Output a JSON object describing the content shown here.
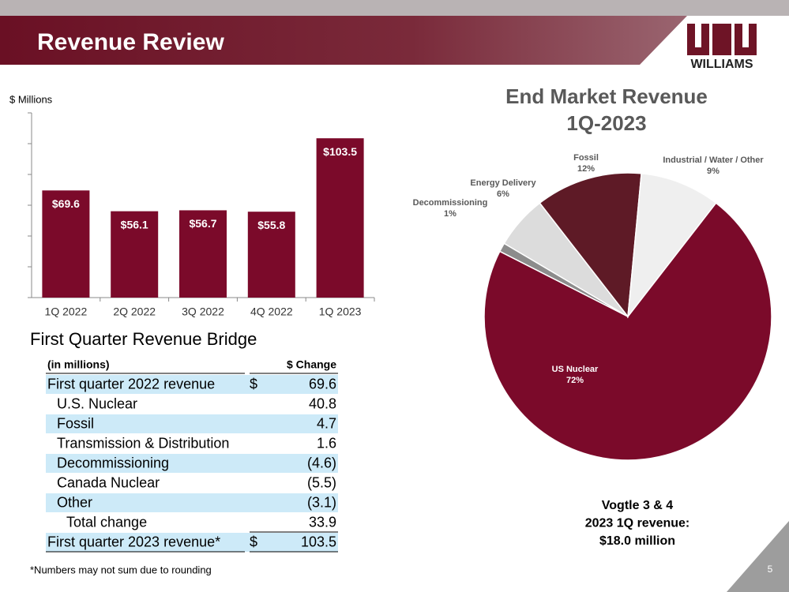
{
  "header": {
    "title": "Revenue Review",
    "logo": "WILLIAMS"
  },
  "chart_data": [
    {
      "type": "bar",
      "y_label": "$ Millions",
      "categories": [
        "1Q 2022",
        "2Q 2022",
        "3Q 2022",
        "4Q 2022",
        "1Q 2023"
      ],
      "values": [
        69.6,
        56.1,
        56.7,
        55.8,
        103.5
      ],
      "value_labels": [
        "$69.6",
        "$56.1",
        "$56.7",
        "$55.8",
        "$103.5"
      ],
      "color": "#7b0a2a",
      "ylim": [
        0,
        120
      ],
      "yticks": [
        0,
        20,
        40,
        60,
        80,
        100,
        120
      ],
      "grid": false
    },
    {
      "type": "pie",
      "title": "End Market Revenue",
      "subtitle": "1Q-2023",
      "categories": [
        "US Nuclear",
        "Decommissioning",
        "Energy Delivery",
        "Fossil",
        "Industrial / Water / Other"
      ],
      "values": [
        72,
        1,
        6,
        12,
        9
      ],
      "value_labels": [
        "72%",
        "1%",
        "6%",
        "12%",
        "9%"
      ],
      "colors": [
        "#7b0a2a",
        "#8c8c8c",
        "#dcdcdc",
        "#5e1a26",
        "#efefef"
      ],
      "annotation": [
        "Vogtle 3 & 4",
        "2023 1Q revenue:",
        "$18.0 million"
      ]
    }
  ],
  "table": {
    "title": "First Quarter Revenue Bridge",
    "header": [
      "(in millions)",
      "$ Change"
    ],
    "rows": [
      {
        "label": "First quarter 2022 revenue",
        "currency": "$",
        "value": "69.6"
      },
      {
        "label": "U.S. Nuclear",
        "value": "40.8"
      },
      {
        "label": "Fossil",
        "value": "4.7"
      },
      {
        "label": "Transmission & Distribution",
        "value": "1.6"
      },
      {
        "label": "Decommissioning",
        "value": "(4.6)"
      },
      {
        "label": "Canada Nuclear",
        "value": "(5.5)"
      },
      {
        "label": "Other",
        "value": "(3.1)"
      },
      {
        "label": "Total change",
        "value": "33.9"
      },
      {
        "label": "First quarter 2023 revenue*",
        "currency": "$",
        "value": "103.5"
      }
    ]
  },
  "footnote": "*Numbers may not sum due to rounding",
  "page_number": "5"
}
